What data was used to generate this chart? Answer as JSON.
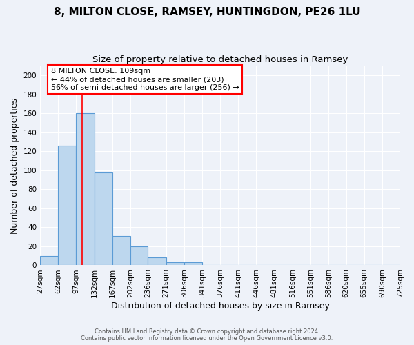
{
  "title1": "8, MILTON CLOSE, RAMSEY, HUNTINGDON, PE26 1LU",
  "title2": "Size of property relative to detached houses in Ramsey",
  "xlabel": "Distribution of detached houses by size in Ramsey",
  "ylabel": "Number of detached properties",
  "bin_edges": [
    27,
    62,
    97,
    132,
    167,
    202,
    236,
    271,
    306,
    341,
    376,
    411,
    446,
    481,
    516,
    551,
    586,
    620,
    655,
    690,
    725
  ],
  "bar_heights": [
    10,
    126,
    160,
    98,
    31,
    20,
    8,
    3,
    3,
    0,
    0,
    0,
    0,
    0,
    0,
    0,
    0,
    0,
    0,
    0
  ],
  "bar_color": "#BDD7EE",
  "bar_edge_color": "#5B9BD5",
  "property_line_x": 109,
  "ylim": [
    0,
    210
  ],
  "yticks": [
    0,
    20,
    40,
    60,
    80,
    100,
    120,
    140,
    160,
    180,
    200
  ],
  "annotation_title": "8 MILTON CLOSE: 109sqm",
  "annotation_line1": "← 44% of detached houses are smaller (203)",
  "annotation_line2": "56% of semi-detached houses are larger (256) →",
  "footer1": "Contains HM Land Registry data © Crown copyright and database right 2024.",
  "footer2": "Contains public sector information licensed under the Open Government Licence v3.0.",
  "background_color": "#EEF2F9",
  "grid_color": "#FFFFFF",
  "title_fontsize": 11,
  "subtitle_fontsize": 9.5,
  "tick_label_size": 7.5,
  "axis_label_size": 9
}
